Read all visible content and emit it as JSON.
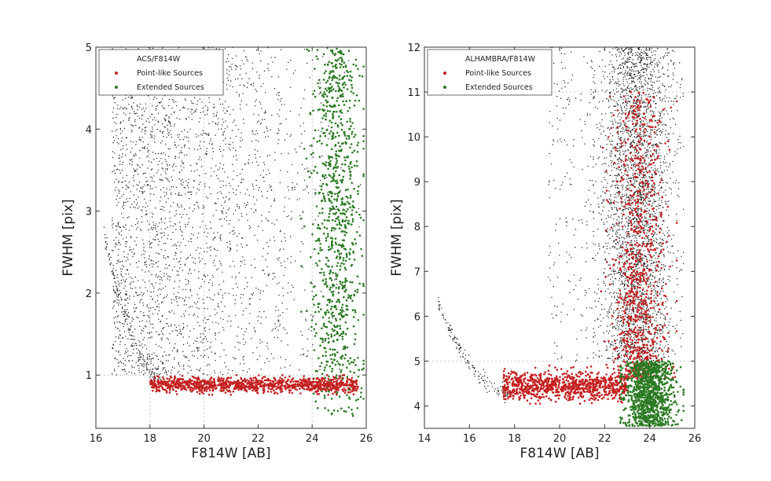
{
  "chart_data": [
    {
      "type": "scatter",
      "title": "",
      "xlabel": "F814W [AB]",
      "ylabel": "FWHM [pix]",
      "xlim": [
        16,
        26
      ],
      "ylim": [
        0.35,
        5
      ],
      "xticks": [
        16,
        18,
        20,
        22,
        24,
        26
      ],
      "yticks": [
        1,
        2,
        3,
        4,
        5
      ],
      "grid": "dotted vertical guides at x=18, 20, 24; dotted horizontal guide at y=1",
      "legend": {
        "position": "top-left",
        "header": "ACS/F814W",
        "entries": [
          "Point-like Sources",
          "Extended Sources"
        ]
      },
      "colors": {
        "all": "#1a1a1a",
        "point": "#c42020",
        "extended": "#2a7a22"
      },
      "series": [
        {
          "id": "all",
          "description": "dense cloud: sparse below mag 22, dense 22–25.5, full height 1–5; tail curving down to FWHM~0.9 near mag 17–18",
          "x_range": [
            16.2,
            25.9
          ],
          "y_range": [
            0.85,
            5.0
          ]
        },
        {
          "id": "point",
          "name": "Point-like Sources",
          "x_range": [
            18.0,
            25.8
          ],
          "y_range": [
            0.75,
            1.0
          ]
        },
        {
          "id": "extended",
          "name": "Extended Sources",
          "x_range": [
            23.5,
            25.9
          ],
          "y_range": [
            0.5,
            5.0
          ]
        }
      ]
    },
    {
      "type": "scatter",
      "title": "",
      "xlabel": "F814W [AB]",
      "ylabel": "FWHM [pix]",
      "xlim": [
        14,
        26
      ],
      "ylim": [
        3.5,
        12
      ],
      "xticks": [
        14,
        16,
        18,
        20,
        22,
        24,
        26
      ],
      "yticks": [
        4,
        5,
        6,
        7,
        8,
        9,
        10,
        11,
        12
      ],
      "grid": "dotted horizontal guides at y=5 and y=11",
      "legend": {
        "position": "top-left",
        "header": "ALHAMBRA/F814W",
        "entries": [
          "Point-like Sources",
          "Extended Sources"
        ]
      },
      "colors": {
        "all": "#1a1a1a",
        "point": "#c42020",
        "extended": "#2a7a22"
      },
      "series": [
        {
          "id": "all",
          "description": "sparse below mag 21, dense column 22–25 spanning FWHM 5–12; tail curving down to FWHM~4.3 near mag 16–17",
          "x_range": [
            14.5,
            25.5
          ],
          "y_range": [
            4.2,
            12.0
          ]
        },
        {
          "id": "point",
          "name": "Point-like Sources",
          "x_range": [
            17.5,
            24.8
          ],
          "y_range": [
            4.1,
            11.0
          ]
        },
        {
          "id": "extended",
          "name": "Extended Sources",
          "x_range": [
            22.7,
            25.5
          ],
          "y_range": [
            3.55,
            5.0
          ]
        }
      ]
    }
  ]
}
